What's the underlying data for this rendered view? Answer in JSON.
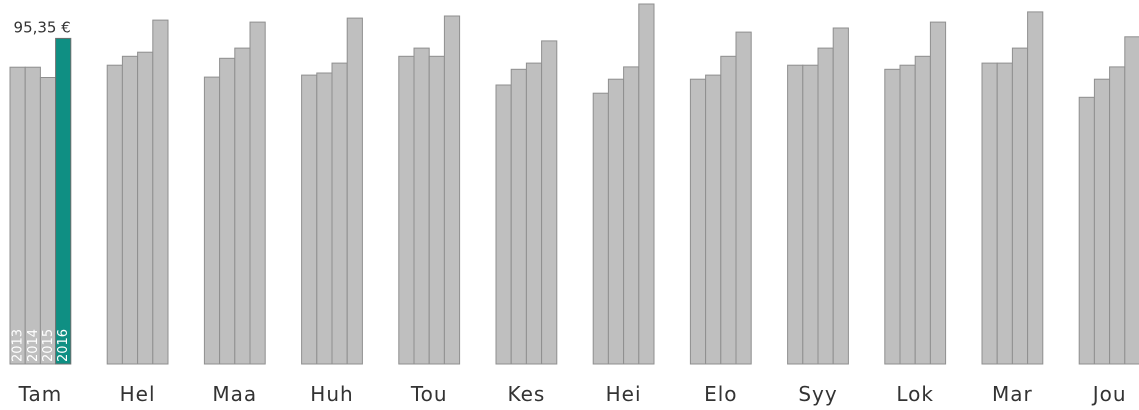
{
  "chart_data": {
    "type": "bar",
    "categories": [
      "Tam",
      "Hel",
      "Maa",
      "Huh",
      "Tou",
      "Kes",
      "Hei",
      "Elo",
      "Syy",
      "Lok",
      "Mar",
      "Jou"
    ],
    "series": [
      {
        "name": "2013",
        "values": [
          86.9,
          87.5,
          84.0,
          84.6,
          90.1,
          81.7,
          79.3,
          83.4,
          87.5,
          86.3,
          88.1,
          78.1
        ]
      },
      {
        "name": "2014",
        "values": [
          86.9,
          90.1,
          89.5,
          85.2,
          92.5,
          86.3,
          83.4,
          84.6,
          87.5,
          87.5,
          88.1,
          83.4
        ]
      },
      {
        "name": "2015",
        "values": [
          83.9,
          91.3,
          92.5,
          88.1,
          90.1,
          88.1,
          87.0,
          90.1,
          92.5,
          90.1,
          92.5,
          87.0
        ]
      },
      {
        "name": "2016",
        "values": [
          95.35,
          100.7,
          100.1,
          101.3,
          101.9,
          94.6,
          105.4,
          97.2,
          98.4,
          100.1,
          103.1,
          95.8
        ]
      }
    ],
    "highlight": {
      "category": "Tam",
      "series": "2016",
      "label": "95,35 €",
      "color": "#0f8f83"
    },
    "bar_color": "#bfbfbf",
    "bar_stroke": "#8f8f8f",
    "ylim": [
      0,
      106
    ],
    "grid": false,
    "title": "",
    "xlabel": "",
    "ylabel": ""
  }
}
